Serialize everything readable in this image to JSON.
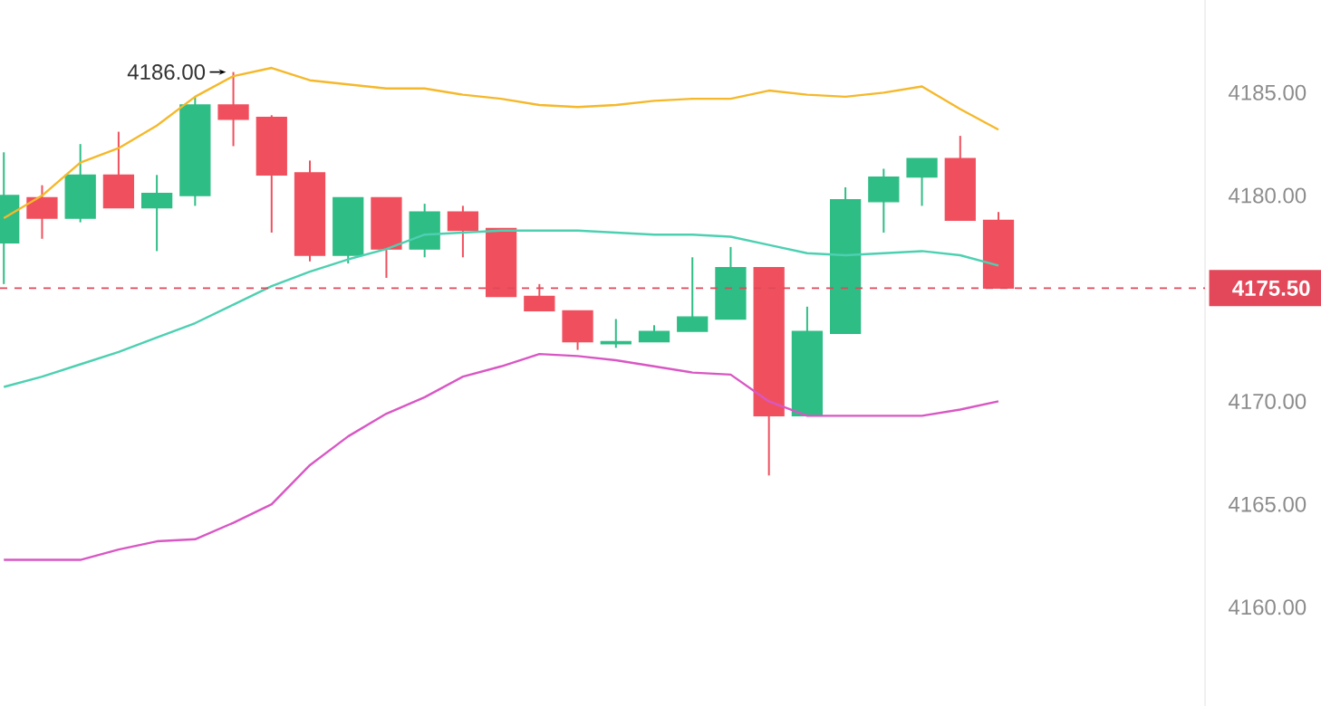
{
  "chart_data": {
    "type": "candlestick",
    "categories": [
      null,
      null,
      null,
      null,
      null,
      null,
      null,
      null,
      null,
      null,
      null,
      null,
      null,
      null,
      null,
      null,
      null,
      null,
      null,
      null,
      null,
      null,
      null,
      null,
      null,
      null,
      null
    ],
    "ohlc": [
      [
        4177.7,
        4182.1,
        4175.7,
        4180.0
      ],
      [
        4179.9,
        4180.5,
        4177.9,
        4178.9
      ],
      [
        4178.9,
        4182.5,
        4178.7,
        4181.0
      ],
      [
        4181.0,
        4183.1,
        4179.4,
        4179.4
      ],
      [
        4179.4,
        4181.0,
        4177.3,
        4180.1
      ],
      [
        4180.0,
        4184.8,
        4179.5,
        4184.4
      ],
      [
        4184.4,
        4186.0,
        4182.4,
        4183.7
      ],
      [
        4183.8,
        4183.9,
        4178.2,
        4181.0
      ],
      [
        4181.1,
        4181.7,
        4176.8,
        4177.1
      ],
      [
        4177.1,
        4179.9,
        4176.7,
        4179.9
      ],
      [
        4179.9,
        4179.9,
        4176.0,
        4177.4
      ],
      [
        4177.4,
        4179.6,
        4177.0,
        4179.2
      ],
      [
        4179.2,
        4179.5,
        4177.0,
        4178.3
      ],
      [
        4178.4,
        4178.4,
        4175.1,
        4175.1
      ],
      [
        4175.1,
        4175.7,
        4174.4,
        4174.4
      ],
      [
        4174.4,
        4174.4,
        4172.5,
        4172.9
      ],
      [
        4172.8,
        4174.0,
        4172.6,
        4172.9
      ],
      [
        4172.9,
        4173.7,
        4172.9,
        4173.4
      ],
      [
        4173.4,
        4177.0,
        4173.4,
        4174.1
      ],
      [
        4174.0,
        4177.5,
        4174.0,
        4176.5
      ],
      [
        4176.5,
        4176.5,
        4166.4,
        4169.3
      ],
      [
        4169.3,
        4174.6,
        4169.3,
        4173.4
      ],
      [
        4173.3,
        4180.4,
        4173.3,
        4179.8
      ],
      [
        4179.7,
        4181.3,
        4178.2,
        4180.9
      ],
      [
        4180.9,
        4181.8,
        4179.5,
        4181.8
      ],
      [
        4181.8,
        4182.9,
        4178.8,
        4178.8
      ],
      [
        4178.8,
        4179.2,
        4175.5,
        4175.5
      ]
    ],
    "colors": [
      "#2ebd85",
      "#f0505e",
      "#2ebd85",
      "#f0505e",
      "#2ebd85",
      "#2ebd85",
      "#f0505e",
      "#f0505e",
      "#f0505e",
      "#2ebd85",
      "#f0505e",
      "#2ebd85",
      "#f0505e",
      "#f0505e",
      "#f0505e",
      "#f0505e",
      "#2ebd85",
      "#2ebd85",
      "#2ebd85",
      "#2ebd85",
      "#f0505e",
      "#2ebd85",
      "#2ebd85",
      "#2ebd85",
      "#2ebd85",
      "#f0505e",
      "#f0505e"
    ],
    "series": [
      {
        "type": "line",
        "color": "#f5b82a",
        "values": [
          4178.9,
          4180.0,
          4181.6,
          4182.3,
          4183.4,
          4184.8,
          4185.8,
          4186.2,
          4185.6,
          4185.4,
          4185.2,
          4185.2,
          4184.9,
          4184.7,
          4184.4,
          4184.3,
          4184.4,
          4184.6,
          4184.7,
          4184.7,
          4185.1,
          4184.9,
          4184.8,
          4185.0,
          4185.3,
          4184.2,
          4183.2
        ]
      },
      {
        "type": "line",
        "color": "#4dd0b1",
        "values": [
          4170.7,
          4171.2,
          4171.8,
          4172.4,
          4173.1,
          4173.8,
          4174.7,
          4175.6,
          4176.3,
          4176.9,
          4177.4,
          4178.1,
          4178.2,
          4178.3,
          4178.3,
          4178.3,
          4178.2,
          4178.1,
          4178.1,
          4178.0,
          4177.6,
          4177.2,
          4177.1,
          4177.2,
          4177.3,
          4177.1,
          4176.6
        ]
      },
      {
        "type": "line",
        "color": "#d957c4",
        "values": [
          4162.3,
          4162.3,
          4162.3,
          4162.8,
          4163.2,
          4163.3,
          4164.1,
          4165.0,
          4166.9,
          4168.3,
          4169.4,
          4170.2,
          4171.2,
          4171.7,
          4172.3,
          4172.2,
          4172.0,
          4171.7,
          4171.4,
          4171.3,
          4170.0,
          4169.3,
          4169.3,
          4169.3,
          4169.3,
          4169.6,
          4170.0
        ]
      }
    ],
    "ylim": [
      4155.2,
      4189.5
    ],
    "yticks": [
      {
        "value": 4160,
        "label": "4160.00"
      },
      {
        "value": 4165,
        "label": "4165.00"
      },
      {
        "value": 4170,
        "label": "4170.00"
      },
      {
        "value": 4180,
        "label": "4180.00"
      },
      {
        "value": 4185,
        "label": "4185.00"
      }
    ],
    "ref_lines": [
      {
        "axis": "y",
        "value": 4175.5,
        "label": "4175.50",
        "color": "#e2485a",
        "line_style": "dashed"
      }
    ],
    "annotations": [
      "4186.00"
    ]
  }
}
